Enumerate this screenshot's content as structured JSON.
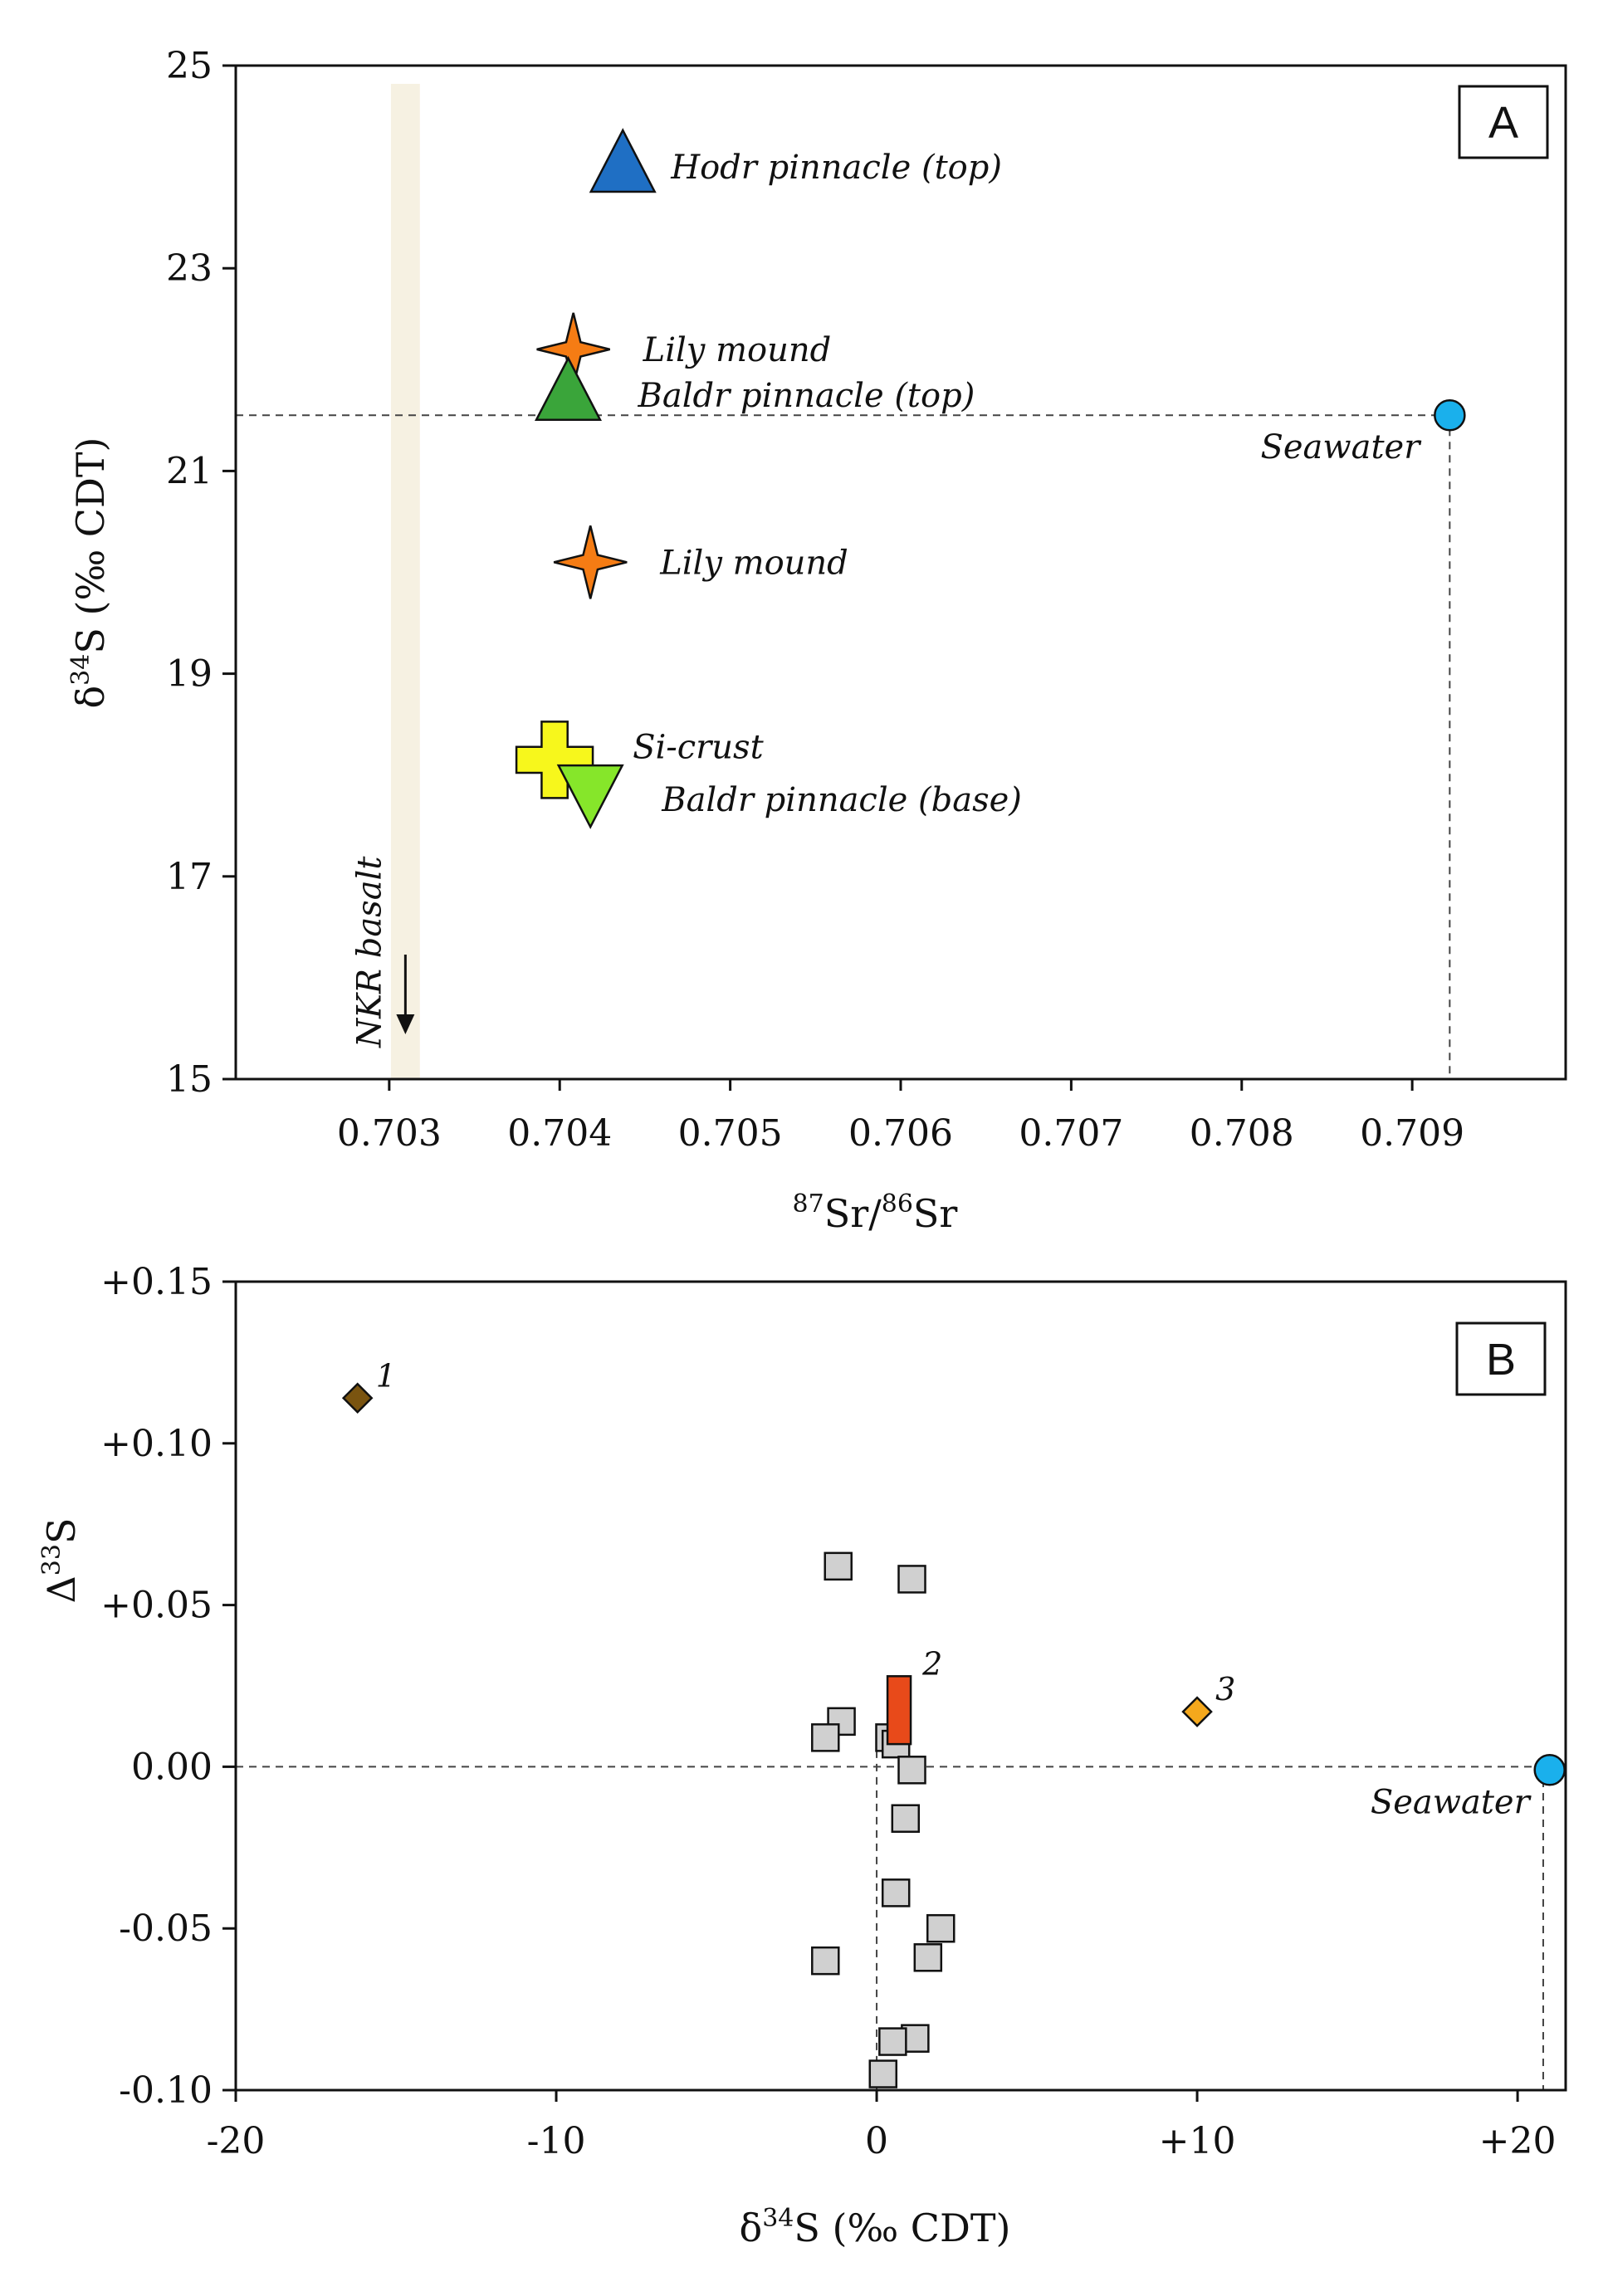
{
  "chart_data": [
    {
      "type": "scatter",
      "panel_label": "A",
      "xlabel_parts": {
        "sup1": "87",
        "base1": "Sr/",
        "sup2": "86",
        "base2": "Sr"
      },
      "ylabel_parts": {
        "pre": "δ",
        "sup": "34",
        "post": "S (‰ CDT)"
      },
      "xlim": [
        0.7021,
        0.7099
      ],
      "ylim": [
        15,
        25
      ],
      "xticks": [
        0.703,
        0.704,
        0.705,
        0.706,
        0.707,
        0.708,
        0.709
      ],
      "xtick_labels": [
        "0.703",
        "0.704",
        "0.705",
        "0.706",
        "0.707",
        "0.708",
        "0.709"
      ],
      "yticks": [
        15,
        17,
        19,
        21,
        23,
        25
      ],
      "ytick_labels": [
        "15",
        "17",
        "19",
        "21",
        "23",
        "25"
      ],
      "grid": false,
      "points": [
        {
          "label": "Hodr pinnacle (top)",
          "x": 0.70437,
          "y": 24.0,
          "marker": "triangle-up",
          "color": "#1f6fc4",
          "label_side": "right"
        },
        {
          "label": "Lily mound",
          "x": 0.70408,
          "y": 22.2,
          "marker": "star4",
          "color": "#f57c14",
          "label_side": "right"
        },
        {
          "label": "Baldr pinnacle (top)",
          "x": 0.70405,
          "y": 21.75,
          "marker": "triangle-up",
          "color": "#3aa53a",
          "label_side": "right"
        },
        {
          "label": "Lily mound",
          "x": 0.70418,
          "y": 20.1,
          "marker": "star4",
          "color": "#f57c14",
          "label_side": "right"
        },
        {
          "label": "Si-crust",
          "x": 0.70397,
          "y": 18.15,
          "marker": "cross",
          "color": "#f7f71c",
          "label_side": "right"
        },
        {
          "label": "Baldr pinnacle (base)",
          "x": 0.70418,
          "y": 17.85,
          "marker": "triangle-down",
          "color": "#86e62a",
          "label_side": "right"
        },
        {
          "label": "Seawater",
          "x": 0.70922,
          "y": 21.55,
          "marker": "circle",
          "color": "#1ab0ec",
          "label_side": "below-left"
        }
      ],
      "reference_lines": [
        {
          "orientation": "horizontal",
          "value": 21.55,
          "style": "dashed"
        },
        {
          "orientation": "vertical",
          "value": 0.70922,
          "style": "dashed"
        }
      ],
      "band": {
        "label": "NKR basalt",
        "x_range": [
          0.70301,
          0.70318
        ],
        "color": "#f6f1e2",
        "arrow": "down"
      }
    },
    {
      "type": "scatter",
      "panel_label": "B",
      "xlabel_parts": {
        "pre": "δ",
        "sup": "34",
        "post": "S (‰ CDT)"
      },
      "ylabel_parts": {
        "pre": "Δ",
        "sup": "33",
        "post": "S"
      },
      "xlim": [
        -20,
        21.5
      ],
      "ylim": [
        -0.1,
        0.15
      ],
      "xticks": [
        -20,
        -10,
        0,
        10,
        20
      ],
      "xtick_labels": [
        "-20",
        "-10",
        "0",
        "+10",
        "+20"
      ],
      "yticks": [
        -0.1,
        -0.05,
        0,
        0.05,
        0.1,
        0.15
      ],
      "ytick_labels": [
        "-0.10",
        "-0.05",
        "0.00",
        "+0.05",
        "+0.10",
        "+0.15"
      ],
      "grid": false,
      "squares": {
        "color": "#d0d0d0",
        "points": [
          {
            "x": -1.2,
            "y": 0.062
          },
          {
            "x": 1.1,
            "y": 0.058
          },
          {
            "x": -1.1,
            "y": 0.014
          },
          {
            "x": -1.6,
            "y": 0.009
          },
          {
            "x": 0.4,
            "y": 0.009
          },
          {
            "x": 0.6,
            "y": 0.007
          },
          {
            "x": 1.1,
            "y": -0.001
          },
          {
            "x": 0.9,
            "y": -0.016
          },
          {
            "x": 0.6,
            "y": -0.039
          },
          {
            "x": 2.0,
            "y": -0.05
          },
          {
            "x": 1.6,
            "y": -0.059
          },
          {
            "x": -1.6,
            "y": -0.06
          },
          {
            "x": 1.2,
            "y": -0.084
          },
          {
            "x": 0.5,
            "y": -0.085
          },
          {
            "x": 0.2,
            "y": -0.095
          }
        ]
      },
      "numbered_points": [
        {
          "label": "1",
          "x": -16.2,
          "y": 0.114,
          "marker": "diamond",
          "color": "#7a5410"
        },
        {
          "label": "3",
          "x": 10.0,
          "y": 0.017,
          "marker": "diamond",
          "color": "#f5a81c"
        }
      ],
      "bar": {
        "label": "2",
        "x": 0.7,
        "y_range": [
          0.007,
          0.028
        ],
        "color": "#e84a1a"
      },
      "seawater": {
        "label": "Seawater",
        "x": 21.0,
        "y": -0.001,
        "color": "#1ab0ec"
      },
      "reference_lines": [
        {
          "orientation": "horizontal",
          "value": 0,
          "style": "dashed"
        },
        {
          "orientation": "vertical",
          "value": 0,
          "style": "dashed",
          "y_range": [
            -0.1,
            0.005
          ]
        },
        {
          "orientation": "vertical",
          "value": 20.8,
          "style": "dashed",
          "y_range": [
            -0.1,
            -0.004
          ]
        }
      ]
    }
  ]
}
